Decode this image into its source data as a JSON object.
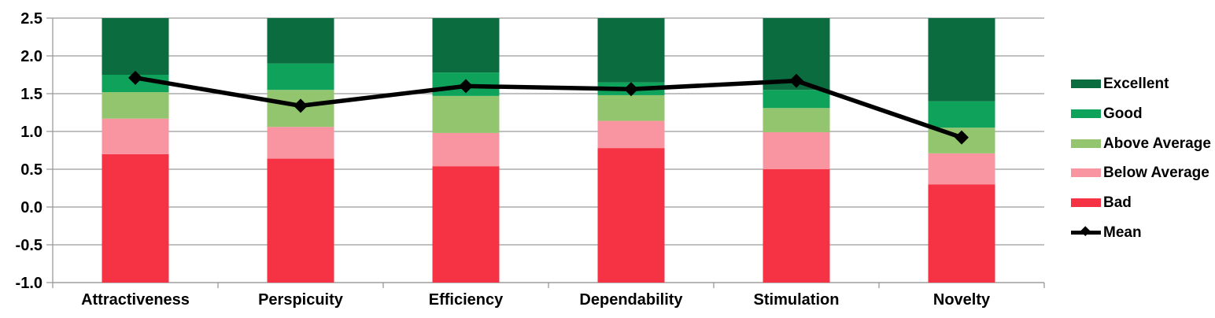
{
  "chart_data": {
    "type": "bar",
    "subtype": "stacked-bar-with-line-overlay",
    "title": "",
    "xlabel": "",
    "ylabel": "",
    "categories": [
      "Attractiveness",
      "Perspicuity",
      "Efficiency",
      "Dependability",
      "Stimulation",
      "Novelty"
    ],
    "stack_base": -1.0,
    "stack_series": [
      {
        "name": "Bad",
        "color": "#f63344",
        "tops": [
          0.7,
          0.64,
          0.54,
          0.78,
          0.5,
          0.3
        ]
      },
      {
        "name": "Below Average",
        "color": "#f995a0",
        "tops": [
          1.17,
          1.06,
          0.98,
          1.14,
          0.99,
          0.71
        ]
      },
      {
        "name": "Above Average",
        "color": "#92c56e",
        "tops": [
          1.52,
          1.55,
          1.47,
          1.48,
          1.31,
          1.05
        ]
      },
      {
        "name": "Good",
        "color": "#0fa25b",
        "tops": [
          1.75,
          1.9,
          1.78,
          1.65,
          1.55,
          1.4
        ]
      },
      {
        "name": "Excellent",
        "color": "#0a6c3f",
        "tops": [
          2.5,
          2.5,
          2.5,
          2.5,
          2.5,
          2.5
        ]
      }
    ],
    "line_series": {
      "name": "Mean",
      "color": "#000000",
      "marker": "diamond",
      "values": [
        1.71,
        1.34,
        1.6,
        1.56,
        1.67,
        0.92
      ]
    },
    "ylim": [
      -1.0,
      2.5
    ],
    "y_ticks": [
      2.5,
      2.0,
      1.5,
      1.0,
      0.5,
      0.0,
      -0.5,
      -1.0
    ],
    "y_tick_labels": [
      "2.5",
      "2.0",
      "1.5",
      "1.0",
      "0.5",
      "0.0",
      "-0.5",
      "-1.0"
    ],
    "grid": true,
    "gridline_color": "#9a9a9a",
    "legend_position": "right"
  },
  "legend": {
    "items": [
      {
        "label": "Excellent",
        "color": "#0a6c3f",
        "type": "box"
      },
      {
        "label": "Good",
        "color": "#0fa25b",
        "type": "box"
      },
      {
        "label": "Above Average",
        "color": "#92c56e",
        "type": "box"
      },
      {
        "label": "Below Average",
        "color": "#f995a0",
        "type": "box"
      },
      {
        "label": "Bad",
        "color": "#f63344",
        "type": "box"
      },
      {
        "label": "Mean",
        "color": "#000000",
        "type": "line-marker"
      }
    ]
  }
}
